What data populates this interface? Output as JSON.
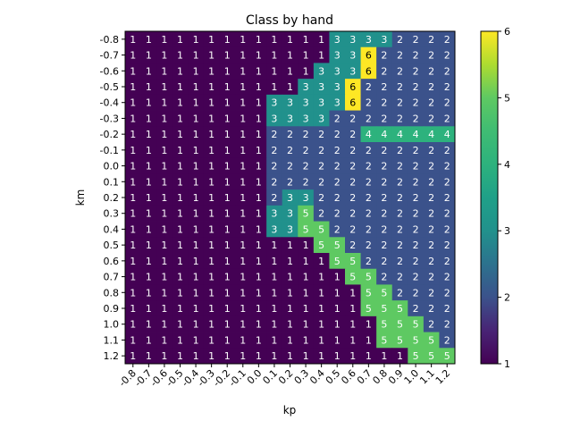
{
  "chart_data": {
    "type": "heatmap",
    "title": "Class by hand",
    "xlabel": "kp",
    "ylabel": "km",
    "x_ticks": [
      "-0.8",
      "-0.7",
      "-0.6",
      "-0.5",
      "-0.4",
      "-0.3",
      "-0.2",
      "-0.1",
      "0.0",
      "0.1",
      "0.2",
      "0.3",
      "0.4",
      "0.5",
      "0.6",
      "0.7",
      "0.8",
      "0.9",
      "1.0",
      "1.1",
      "1.2"
    ],
    "y_ticks": [
      "-0.8",
      "-0.7",
      "-0.6",
      "-0.5",
      "-0.4",
      "-0.3",
      "-0.2",
      "-0.1",
      "0.0",
      "0.1",
      "0.2",
      "0.3",
      "0.4",
      "0.5",
      "0.6",
      "0.7",
      "0.8",
      "0.9",
      "1.0",
      "1.1",
      "1.2"
    ],
    "colorbar_ticks": [
      "1",
      "2",
      "3",
      "4",
      "5",
      "6"
    ],
    "value_range": [
      1,
      6
    ],
    "colormap": "viridis",
    "values": [
      [
        1,
        1,
        1,
        1,
        1,
        1,
        1,
        1,
        1,
        1,
        1,
        1,
        1,
        3,
        3,
        3,
        3,
        2,
        2,
        2,
        2
      ],
      [
        1,
        1,
        1,
        1,
        1,
        1,
        1,
        1,
        1,
        1,
        1,
        1,
        1,
        3,
        3,
        6,
        2,
        2,
        2,
        2,
        2
      ],
      [
        1,
        1,
        1,
        1,
        1,
        1,
        1,
        1,
        1,
        1,
        1,
        1,
        3,
        3,
        3,
        6,
        2,
        2,
        2,
        2,
        2
      ],
      [
        1,
        1,
        1,
        1,
        1,
        1,
        1,
        1,
        1,
        1,
        1,
        3,
        3,
        3,
        6,
        2,
        2,
        2,
        2,
        2,
        2
      ],
      [
        1,
        1,
        1,
        1,
        1,
        1,
        1,
        1,
        1,
        3,
        3,
        3,
        3,
        3,
        6,
        2,
        2,
        2,
        2,
        2,
        2
      ],
      [
        1,
        1,
        1,
        1,
        1,
        1,
        1,
        1,
        1,
        3,
        3,
        3,
        3,
        2,
        2,
        2,
        2,
        2,
        2,
        2,
        2
      ],
      [
        1,
        1,
        1,
        1,
        1,
        1,
        1,
        1,
        1,
        2,
        2,
        2,
        2,
        2,
        2,
        4,
        4,
        4,
        4,
        4,
        4
      ],
      [
        1,
        1,
        1,
        1,
        1,
        1,
        1,
        1,
        1,
        2,
        2,
        2,
        2,
        2,
        2,
        2,
        2,
        2,
        2,
        2,
        2
      ],
      [
        1,
        1,
        1,
        1,
        1,
        1,
        1,
        1,
        1,
        2,
        2,
        2,
        2,
        2,
        2,
        2,
        2,
        2,
        2,
        2,
        2
      ],
      [
        1,
        1,
        1,
        1,
        1,
        1,
        1,
        1,
        1,
        2,
        2,
        2,
        2,
        2,
        2,
        2,
        2,
        2,
        2,
        2,
        2
      ],
      [
        1,
        1,
        1,
        1,
        1,
        1,
        1,
        1,
        1,
        2,
        3,
        3,
        2,
        2,
        2,
        2,
        2,
        2,
        2,
        2,
        2
      ],
      [
        1,
        1,
        1,
        1,
        1,
        1,
        1,
        1,
        1,
        3,
        3,
        5,
        2,
        2,
        2,
        2,
        2,
        2,
        2,
        2,
        2
      ],
      [
        1,
        1,
        1,
        1,
        1,
        1,
        1,
        1,
        1,
        3,
        3,
        5,
        5,
        2,
        2,
        2,
        2,
        2,
        2,
        2,
        2
      ],
      [
        1,
        1,
        1,
        1,
        1,
        1,
        1,
        1,
        1,
        1,
        1,
        1,
        5,
        5,
        2,
        2,
        2,
        2,
        2,
        2,
        2
      ],
      [
        1,
        1,
        1,
        1,
        1,
        1,
        1,
        1,
        1,
        1,
        1,
        1,
        1,
        5,
        5,
        2,
        2,
        2,
        2,
        2,
        2
      ],
      [
        1,
        1,
        1,
        1,
        1,
        1,
        1,
        1,
        1,
        1,
        1,
        1,
        1,
        1,
        5,
        5,
        2,
        2,
        2,
        2,
        2
      ],
      [
        1,
        1,
        1,
        1,
        1,
        1,
        1,
        1,
        1,
        1,
        1,
        1,
        1,
        1,
        1,
        5,
        5,
        2,
        2,
        2,
        2
      ],
      [
        1,
        1,
        1,
        1,
        1,
        1,
        1,
        1,
        1,
        1,
        1,
        1,
        1,
        1,
        1,
        5,
        5,
        5,
        2,
        2,
        2
      ],
      [
        1,
        1,
        1,
        1,
        1,
        1,
        1,
        1,
        1,
        1,
        1,
        1,
        1,
        1,
        1,
        1,
        5,
        5,
        5,
        2,
        2
      ],
      [
        1,
        1,
        1,
        1,
        1,
        1,
        1,
        1,
        1,
        1,
        1,
        1,
        1,
        1,
        1,
        1,
        5,
        5,
        5,
        5,
        2
      ],
      [
        1,
        1,
        1,
        1,
        1,
        1,
        1,
        1,
        1,
        1,
        1,
        1,
        1,
        1,
        1,
        1,
        1,
        1,
        5,
        5,
        5
      ]
    ],
    "colors": {
      "1": "#440154",
      "2": "#3b528b",
      "3": "#21918c",
      "4": "#2db27d",
      "5": "#5ec962",
      "6": "#fde725"
    }
  }
}
